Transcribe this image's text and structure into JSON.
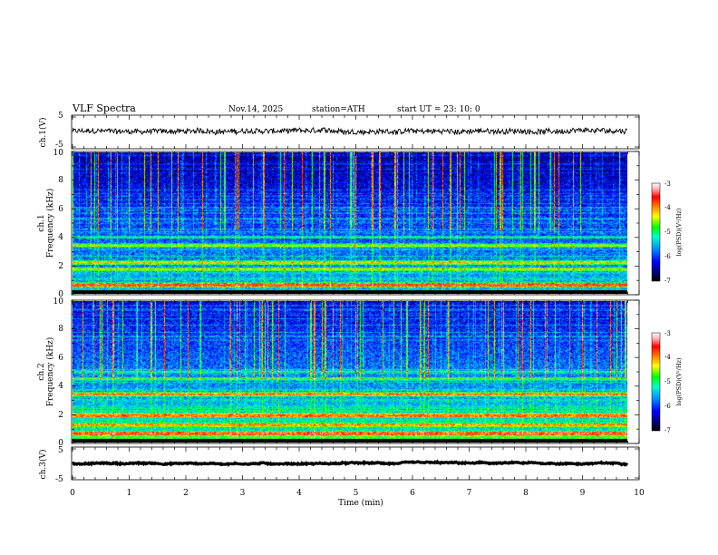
{
  "header": {
    "title": "VLF  Spectra",
    "date": "Nov.14, 2025",
    "station": "station=ATH",
    "start": "start  UT  =   23: 10: 0"
  },
  "chart_data": [
    {
      "type": "line",
      "name": "ch1-waveform",
      "ylabel": "ch.1(V)",
      "ylim": [
        -5,
        5
      ],
      "yticks": [
        "5",
        "-5"
      ],
      "xlim": [
        0,
        9.8
      ],
      "baseline": 0.2,
      "noise_amplitude": 1.6
    },
    {
      "type": "heatmap",
      "name": "ch1-spectrogram",
      "ylabel_channel": "ch.1",
      "ylabel": "Frequency  (kHz)",
      "ylim": [
        0,
        10
      ],
      "yticks": [
        "0",
        "2",
        "4",
        "6",
        "8",
        "10"
      ],
      "xlim": [
        0,
        9.8
      ],
      "colorbar": {
        "label": "log(PSD)(V²/Hz)",
        "range": [
          -7,
          -3
        ],
        "ticks": [
          "-3",
          "-4",
          "-5",
          "-6",
          "-7"
        ]
      },
      "bands_kHz": [
        {
          "f": 0.1,
          "level": -7.0
        },
        {
          "f": 0.6,
          "level": -3.8
        },
        {
          "f": 1.7,
          "level": -4.6
        },
        {
          "f": 2.2,
          "level": -4.4
        },
        {
          "f": 3.4,
          "level": -4.6
        },
        {
          "f": 4.0,
          "level": -5.2
        },
        {
          "f": 5.3,
          "level": -5.6
        }
      ],
      "impulsive_activity": "dense vertical sferics across full record"
    },
    {
      "type": "heatmap",
      "name": "ch2-spectrogram",
      "ylabel_channel": "ch.2",
      "ylabel": "Frequency  (kHz)",
      "ylim": [
        0,
        10
      ],
      "yticks": [
        "0",
        "2",
        "4",
        "6",
        "8",
        "10"
      ],
      "xlim": [
        0,
        9.8
      ],
      "colorbar": {
        "label": "log(PSD)(V²/Hz)",
        "range": [
          -7,
          -3
        ],
        "ticks": [
          "-3",
          "-4",
          "-5",
          "-6",
          "-7"
        ]
      },
      "bands_kHz": [
        {
          "f": 0.1,
          "level": -7.0
        },
        {
          "f": 0.6,
          "level": -3.6
        },
        {
          "f": 1.2,
          "level": -4.2
        },
        {
          "f": 1.9,
          "level": -3.9
        },
        {
          "f": 3.4,
          "level": -4.1
        },
        {
          "f": 4.5,
          "level": -4.8
        },
        {
          "f": 5.0,
          "level": -5.2
        }
      ],
      "impulsive_activity": "dense vertical sferics across full record"
    },
    {
      "type": "line",
      "name": "ch3-waveform",
      "ylabel": "ch.3(V)",
      "ylim": [
        -5,
        5
      ],
      "yticks": [
        "5",
        "-5"
      ],
      "xlim": [
        0,
        9.8
      ],
      "baseline": 0,
      "noise_amplitude": 0.35
    }
  ],
  "xaxis": {
    "label": "Time  (min)",
    "range": [
      0,
      10
    ],
    "ticks": [
      "0",
      "1",
      "2",
      "3",
      "4",
      "5",
      "6",
      "7",
      "8",
      "9",
      "10"
    ]
  }
}
